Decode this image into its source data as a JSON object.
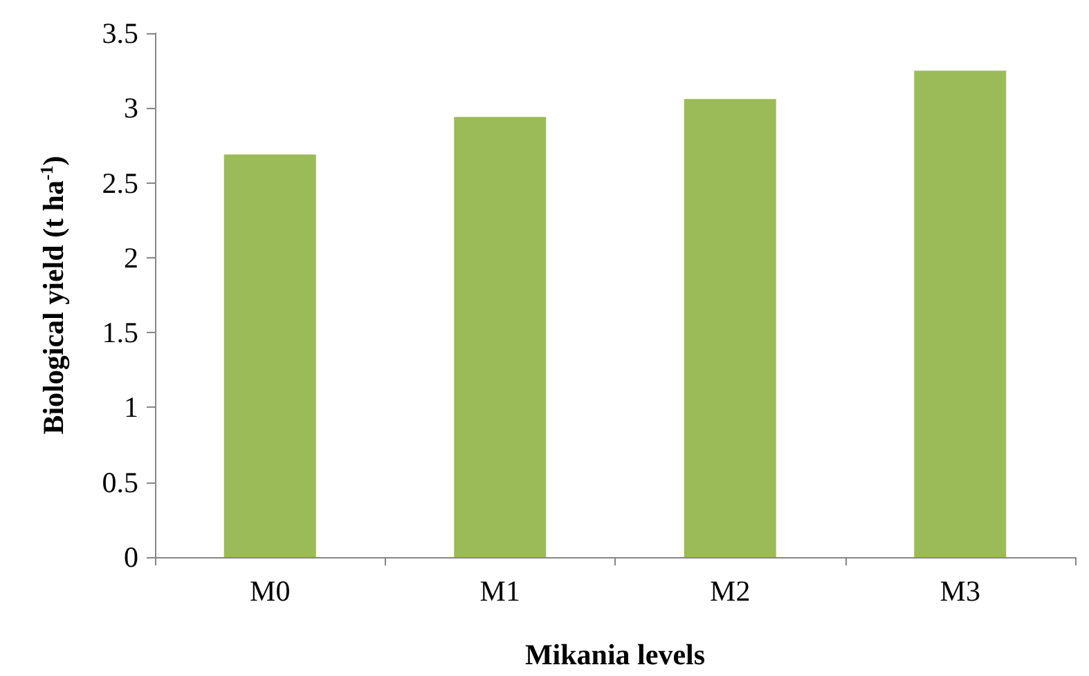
{
  "chart_data": {
    "type": "bar",
    "xlabel": "Mikania levels",
    "ylabel": "Biological yield (t ha$^{-1}$)",
    "categories": [
      "M0",
      "M1",
      "M2",
      "M3"
    ],
    "values": [
      2.69,
      2.94,
      3.06,
      3.25
    ],
    "color": "#9bbb59",
    "ylim": [
      0,
      3.5
    ],
    "yticks": [
      0,
      0.5,
      1,
      1.5,
      2,
      2.5,
      3,
      3.5
    ],
    "grid": false
  }
}
